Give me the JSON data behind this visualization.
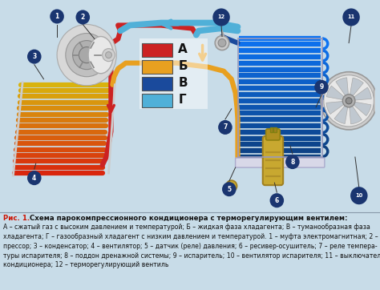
{
  "bg_main": "#c8dce8",
  "bg_caption": "#dbe8f0",
  "border_color": "#a0b8cc",
  "red": "#cc2222",
  "orange": "#e8a020",
  "blue_dark": "#1a4a9c",
  "blue_light": "#50b0d8",
  "caption_title_color": "#cc1100",
  "caption_text_color": "#111111",
  "label_bg": "#1a3570",
  "label_fg": "#ffffff",
  "legend": [
    {
      "label": "А",
      "color": "#cc2222"
    },
    {
      "label": "Б",
      "color": "#e8a020"
    },
    {
      "label": "В",
      "color": "#1a4a9c"
    },
    {
      "label": "Г",
      "color": "#50b0d8"
    }
  ],
  "caption_title": "Рис. 1.",
  "caption_subtitle": " Схема парокомпрессионного кондиционера с терморегулирующим вентилем:",
  "caption_body": "А – сжатый газ с высоким давлением и температурой; Б – жидкая фаза хладагента; В – туманообразная фаза\nхладагента; Г – газообразный хладагент с низким давлением и температурой. 1 – муфта электромагнитная; 2 – ком-\nпрессор; 3 – конденсатор; 4 – вентилятор; 5 – датчик (реле) давления; 6 – ресивер-осушитель; 7 – реле темпера-\nтуры испарителя; 8 – поддон дренажной системы; 9 – испаритель; 10 – вентилятор испарителя; 11 – выключатель\nкондиционера; 12 – терморегулирующий вентиль"
}
